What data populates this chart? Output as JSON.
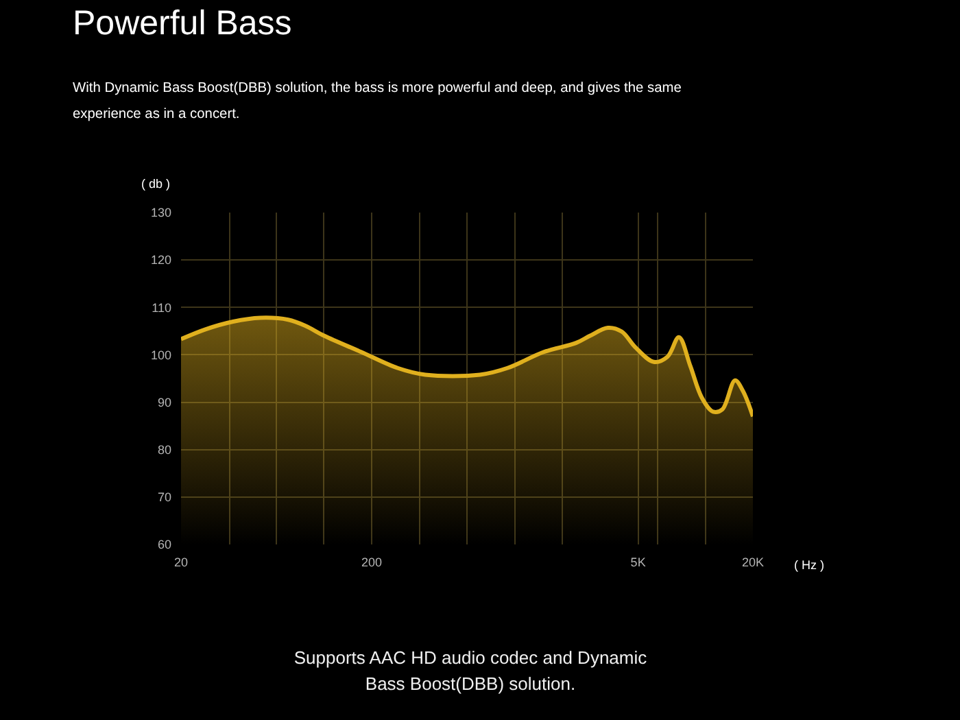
{
  "chart_data": {
    "type": "area",
    "title": "Powerful Bass",
    "subtitle": "With Dynamic Bass Boost(DBB) solution, the bass is more powerful and deep, and gives the same experience as in a concert.",
    "xlabel": "( Hz )",
    "ylabel": "( db )",
    "annotations": [
      "Supports AAC HD audio codec and Dynamic Bass Boost(DBB) solution."
    ],
    "series": [
      {
        "color": "#e0b01e",
        "x": [
          20,
          27,
          37.5,
          52,
          73,
          90,
          113,
          176,
          274,
          382,
          740,
          1030,
          1600,
          2360,
          2790,
          3470,
          4100,
          4830,
          6040,
          7130,
          8180,
          9380,
          10780,
          12360,
          13830,
          16120,
          17720,
          20000
        ],
        "values": [
          103.3,
          105.4,
          107.0,
          107.8,
          107.4,
          106.1,
          104,
          100.6,
          97.2,
          95.8,
          95.8,
          97.2,
          100.6,
          102.5,
          104,
          105.7,
          104.9,
          101.6,
          98.5,
          99.6,
          103.7,
          97.7,
          91,
          88,
          88.5,
          94.6,
          92.4,
          87
        ]
      }
    ],
    "log": "x",
    "xlim": [
      20,
      20000
    ],
    "ylim": [
      60,
      130
    ],
    "xticks": [
      20,
      {
        "value": 36,
        "label": null
      },
      {
        "value": 63,
        "label": null
      },
      {
        "value": 112,
        "label": null
      },
      200,
      {
        "value": 356,
        "label": null
      },
      {
        "value": 632,
        "label": null
      },
      {
        "value": 1125,
        "label": null
      },
      {
        "value": 2000,
        "label": null
      },
      {
        "value": 5000,
        "label": "5K"
      },
      {
        "value": 6325,
        "label": null
      },
      {
        "value": 11247,
        "label": null
      },
      {
        "value": 20000,
        "label": "20K"
      }
    ],
    "yticks": [
      60,
      70,
      80,
      90,
      100,
      110,
      120,
      130
    ],
    "grid": true
  }
}
